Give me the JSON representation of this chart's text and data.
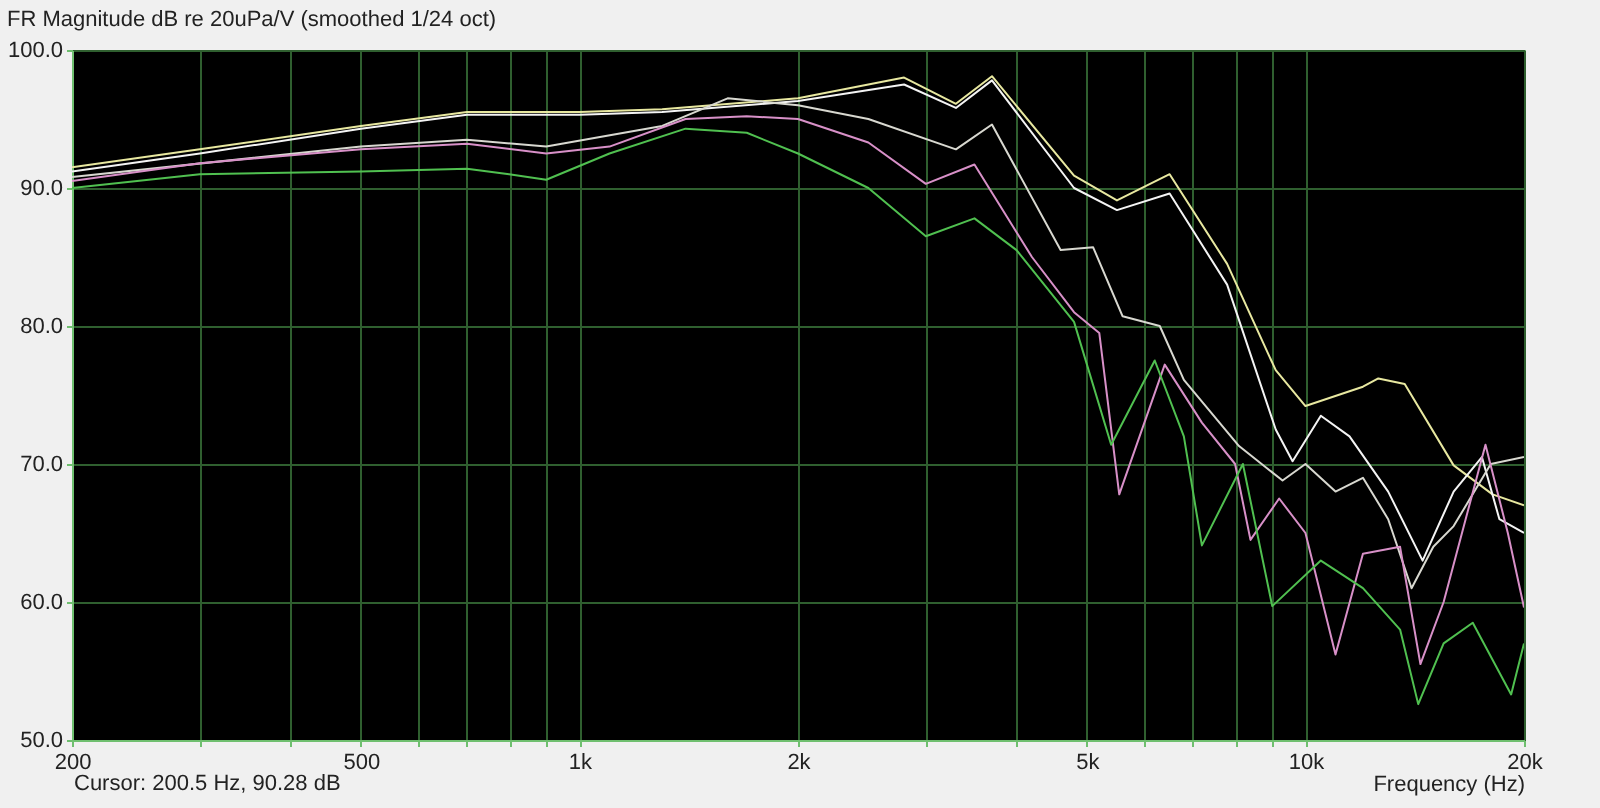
{
  "chart_data": {
    "type": "line",
    "title": "FR Magnitude dB re 20uPa/V (smoothed 1/24 oct)",
    "xlabel": "Frequency (Hz)",
    "annotations": [
      "Cursor: 200.5 Hz, 90.28 dB"
    ],
    "log": "x",
    "grid": true,
    "legend": false,
    "marker": "none",
    "line_style": "solid",
    "xlim": [
      200,
      20000
    ],
    "ylim": [
      50,
      100
    ],
    "xticks": [
      200,
      {
        "value": 300,
        "label": null
      },
      {
        "value": 400,
        "label": null
      },
      500,
      {
        "value": 600,
        "label": null
      },
      {
        "value": 700,
        "label": null
      },
      {
        "value": 800,
        "label": null
      },
      {
        "value": 900,
        "label": null
      },
      {
        "value": 1000,
        "label": "1k"
      },
      {
        "value": 2000,
        "label": "2k"
      },
      {
        "value": 3000,
        "label": null
      },
      {
        "value": 4000,
        "label": null
      },
      {
        "value": 5000,
        "label": "5k"
      },
      {
        "value": 6000,
        "label": null
      },
      {
        "value": 7000,
        "label": null
      },
      {
        "value": 8000,
        "label": null
      },
      {
        "value": 9000,
        "label": null
      },
      {
        "value": 10000,
        "label": "10k"
      },
      {
        "value": 20000,
        "label": "20k"
      }
    ],
    "yticks": [
      {
        "value": 50,
        "label": "50.0"
      },
      {
        "value": 60,
        "label": "60.0"
      },
      {
        "value": 70,
        "label": "70.0"
      },
      {
        "value": 80,
        "label": "80.0"
      },
      {
        "value": 90,
        "label": "90.0"
      },
      {
        "value": 100,
        "label": "100.0"
      }
    ],
    "series": [
      {
        "color": "#e8e8a0",
        "x": [
          200,
          300,
          500,
          700,
          1000,
          1300,
          2000,
          2800,
          3300,
          3700,
          4800,
          5500,
          6500,
          7800,
          9100,
          10000,
          12000,
          12600,
          13700,
          16000,
          18100,
          20000
        ],
        "values": [
          91.5,
          92.8,
          94.5,
          95.5,
          95.5,
          95.7,
          96.5,
          98.0,
          96.1,
          98.1,
          90.9,
          89.1,
          91.0,
          84.5,
          76.8,
          74.2,
          75.6,
          76.2,
          75.8,
          69.9,
          67.8,
          67.0
        ]
      },
      {
        "color": "#f4f4f4",
        "x": [
          200,
          300,
          500,
          700,
          1000,
          1300,
          2000,
          2800,
          3300,
          3700,
          4800,
          5500,
          6500,
          7800,
          9100,
          9600,
          10500,
          11500,
          13000,
          14500,
          16000,
          17500,
          18500,
          20000
        ],
        "values": [
          91.2,
          92.5,
          94.3,
          95.3,
          95.3,
          95.5,
          96.3,
          97.5,
          95.8,
          97.8,
          90.0,
          88.4,
          89.6,
          83.0,
          72.5,
          70.2,
          73.5,
          72.0,
          68.0,
          63.0,
          68.0,
          70.5,
          66.0,
          65.0
        ]
      },
      {
        "color": "#d8d8d0",
        "x": [
          200,
          500,
          700,
          900,
          1300,
          1600,
          2000,
          2500,
          3300,
          3700,
          4600,
          5100,
          5600,
          6300,
          6800,
          8100,
          9300,
          10000,
          11000,
          12000,
          13000,
          14000,
          15000,
          16000,
          18000,
          20000
        ],
        "values": [
          90.8,
          93.0,
          93.5,
          93.0,
          94.5,
          96.5,
          96.0,
          95.0,
          92.8,
          94.6,
          85.5,
          85.7,
          80.7,
          80.0,
          76.1,
          71.3,
          68.8,
          70.0,
          68.0,
          69.0,
          66.0,
          61.0,
          64.0,
          65.5,
          70.0,
          70.5
        ]
      },
      {
        "color": "#d890c8",
        "x": [
          200,
          300,
          500,
          700,
          900,
          1100,
          1400,
          1700,
          2000,
          2500,
          3000,
          3500,
          4200,
          4800,
          5200,
          5540,
          6400,
          7200,
          8000,
          8400,
          9200,
          10000,
          11000,
          12000,
          13500,
          14400,
          15500,
          17700,
          19000,
          20000
        ],
        "values": [
          90.5,
          91.8,
          92.8,
          93.2,
          92.5,
          93.0,
          95.0,
          95.2,
          95.0,
          93.3,
          90.3,
          91.7,
          85.0,
          81.0,
          79.5,
          67.8,
          77.2,
          73.0,
          70.0,
          64.5,
          67.5,
          65.0,
          56.2,
          63.5,
          64.0,
          55.5,
          60.0,
          71.4,
          65.0,
          59.6
        ]
      },
      {
        "color": "#50c050",
        "x": [
          200,
          300,
          500,
          700,
          800,
          900,
          1100,
          1400,
          1700,
          2000,
          2500,
          3000,
          3500,
          4000,
          4800,
          5400,
          6200,
          6800,
          7200,
          8200,
          9000,
          10500,
          12000,
          13500,
          14300,
          15500,
          17000,
          19200,
          20000
        ],
        "values": [
          90.0,
          91.0,
          91.2,
          91.4,
          91.0,
          90.6,
          92.5,
          94.3,
          94.0,
          92.5,
          90.0,
          86.5,
          87.8,
          85.5,
          80.3,
          71.4,
          77.5,
          72.0,
          64.1,
          70.0,
          59.7,
          63.0,
          61.0,
          58.0,
          52.6,
          57.0,
          58.5,
          53.3,
          57.0
        ]
      }
    ]
  }
}
